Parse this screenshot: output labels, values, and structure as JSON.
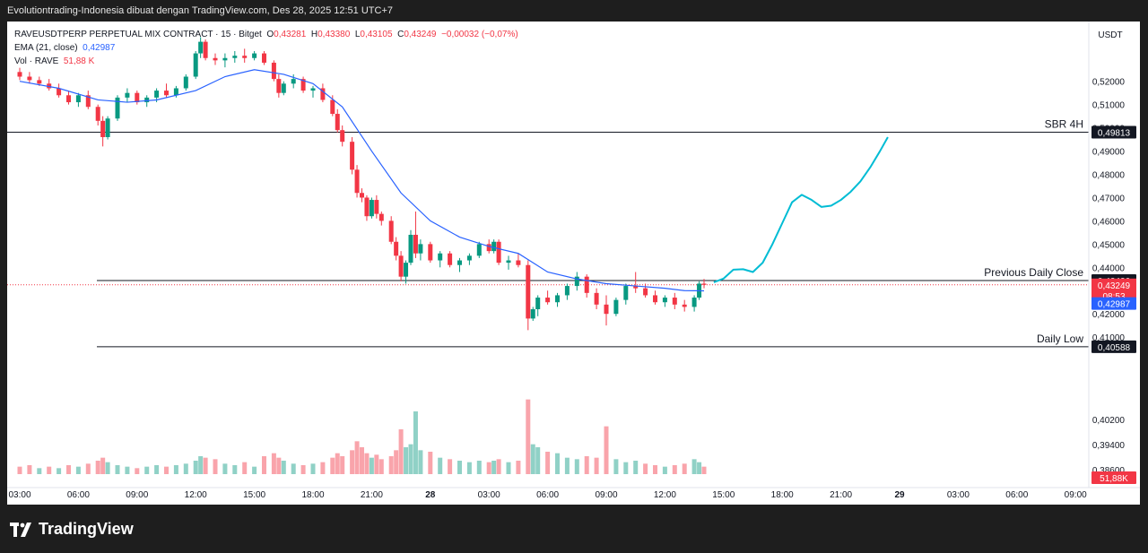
{
  "header": {
    "caption": "Evolutiontrading-Indonesia dibuat dengan TradingView.com, Des 28, 2025 12:51 UTC+7"
  },
  "legend": {
    "symbol": "RAVEUSDTPERP PERPETUAL MIX CONTRACT · 15 · Bitget",
    "o_label": "O",
    "o_value": "0,43281",
    "h_label": "H",
    "h_value": "0,43380",
    "l_label": "L",
    "l_value": "0,43105",
    "c_label": "C",
    "c_value": "0,43249",
    "change": "−0,00032 (−0,07%)",
    "ema_label": "EMA (21, close)",
    "ema_value": "0,42987",
    "vol_label": "Vol · RAVE",
    "vol_value": "51,88 K"
  },
  "footer": {
    "brand": "TradingView"
  },
  "chart_data": {
    "type": "candlestick",
    "currency": "USDT",
    "interval_minutes": 15,
    "ylim": [
      0.38,
      0.538
    ],
    "y_ticks": [
      "0,52000",
      "0,51000",
      "0,50000",
      "0,49000",
      "0,48000",
      "0,47000",
      "0,46000",
      "0,45000",
      "0,44000",
      "0,42000",
      "0,41000",
      "0,40200",
      "0,39400",
      "0,38600"
    ],
    "y_tick_values": [
      0.52,
      0.51,
      0.5,
      0.49,
      0.48,
      0.47,
      0.46,
      0.45,
      0.44,
      0.42,
      0.41,
      0.402,
      0.394,
      0.386
    ],
    "x_ticks": [
      "03:00",
      "06:00",
      "09:00",
      "12:00",
      "15:00",
      "18:00",
      "21:00",
      "28",
      "03:00",
      "06:00",
      "09:00",
      "12:00",
      "15:00",
      "18:00",
      "21:00",
      "29",
      "03:00",
      "06:00",
      "09:00"
    ],
    "x_tick_hours": [
      3,
      6,
      9,
      12,
      15,
      18,
      21,
      24,
      27,
      30,
      33,
      36,
      39,
      42,
      45,
      48,
      51,
      54,
      57
    ],
    "horizontal_levels": [
      {
        "label": "SBR 4H",
        "value": 0.49813,
        "value_label": "0,49813"
      },
      {
        "label": "Previous Daily Close",
        "value": 0.43436,
        "value_label": "0,43436"
      },
      {
        "label": "Daily Low",
        "value": 0.40588,
        "value_label": "0,40588"
      }
    ],
    "last_price": {
      "value": 0.43249,
      "value_label": "0,43249",
      "countdown": "08:53",
      "color": "#f23645"
    },
    "ema": {
      "label": "EMA (21, close)",
      "value": 0.42987,
      "value_label": "0,42987",
      "color": "#2962ff"
    },
    "volume_label": "51,88K",
    "colors": {
      "up": "#089981",
      "down": "#f23645",
      "ema": "#2962ff",
      "projection": "#00bcd4"
    },
    "ohlc_start_hour": 3.0,
    "ohlc": [
      [
        3.0,
        0.524,
        0.5258,
        0.5205,
        0.522
      ],
      [
        3.5,
        0.522,
        0.524,
        0.519,
        0.5205
      ],
      [
        4.0,
        0.5205,
        0.522,
        0.518,
        0.519
      ],
      [
        4.5,
        0.519,
        0.521,
        0.516,
        0.517
      ],
      [
        5.0,
        0.517,
        0.519,
        0.513,
        0.514
      ],
      [
        5.5,
        0.514,
        0.516,
        0.51,
        0.511
      ],
      [
        6.0,
        0.511,
        0.515,
        0.509,
        0.514
      ],
      [
        6.5,
        0.514,
        0.516,
        0.508,
        0.509
      ],
      [
        7.0,
        0.509,
        0.51,
        0.501,
        0.503
      ],
      [
        7.25,
        0.503,
        0.505,
        0.492,
        0.496
      ],
      [
        7.5,
        0.496,
        0.505,
        0.495,
        0.504
      ],
      [
        8.0,
        0.504,
        0.514,
        0.503,
        0.513
      ],
      [
        8.5,
        0.513,
        0.517,
        0.511,
        0.515
      ],
      [
        9.0,
        0.515,
        0.516,
        0.51,
        0.511
      ],
      [
        9.5,
        0.511,
        0.514,
        0.509,
        0.513
      ],
      [
        10.0,
        0.513,
        0.517,
        0.511,
        0.516
      ],
      [
        10.5,
        0.516,
        0.519,
        0.513,
        0.514
      ],
      [
        11.0,
        0.514,
        0.518,
        0.513,
        0.517
      ],
      [
        11.5,
        0.517,
        0.523,
        0.516,
        0.522
      ],
      [
        12.0,
        0.522,
        0.533,
        0.521,
        0.532
      ],
      [
        12.25,
        0.532,
        0.539,
        0.53,
        0.537
      ],
      [
        12.5,
        0.537,
        0.538,
        0.529,
        0.53
      ],
      [
        13.0,
        0.53,
        0.532,
        0.527,
        0.529
      ],
      [
        13.5,
        0.529,
        0.532,
        0.526,
        0.53
      ],
      [
        14.0,
        0.53,
        0.533,
        0.528,
        0.531
      ],
      [
        14.5,
        0.531,
        0.534,
        0.528,
        0.53
      ],
      [
        15.0,
        0.53,
        0.533,
        0.529,
        0.532
      ],
      [
        15.5,
        0.532,
        0.533,
        0.527,
        0.528
      ],
      [
        16.0,
        0.528,
        0.529,
        0.52,
        0.521
      ],
      [
        16.25,
        0.521,
        0.523,
        0.513,
        0.515
      ],
      [
        16.5,
        0.515,
        0.52,
        0.514,
        0.519
      ],
      [
        17.0,
        0.519,
        0.523,
        0.517,
        0.521
      ],
      [
        17.5,
        0.521,
        0.522,
        0.515,
        0.516
      ],
      [
        18.0,
        0.516,
        0.518,
        0.513,
        0.517
      ],
      [
        18.5,
        0.517,
        0.519,
        0.511,
        0.512
      ],
      [
        19.0,
        0.512,
        0.514,
        0.505,
        0.506
      ],
      [
        19.25,
        0.506,
        0.508,
        0.498,
        0.499
      ],
      [
        19.5,
        0.499,
        0.501,
        0.492,
        0.494
      ],
      [
        20.0,
        0.494,
        0.496,
        0.48,
        0.482
      ],
      [
        20.25,
        0.482,
        0.484,
        0.47,
        0.472
      ],
      [
        20.5,
        0.472,
        0.474,
        0.468,
        0.47
      ],
      [
        20.75,
        0.47,
        0.471,
        0.46,
        0.462
      ],
      [
        21.0,
        0.462,
        0.47,
        0.461,
        0.469
      ],
      [
        21.25,
        0.469,
        0.471,
        0.461,
        0.463
      ],
      [
        21.5,
        0.463,
        0.464,
        0.458,
        0.46
      ],
      [
        22.0,
        0.46,
        0.462,
        0.45,
        0.451
      ],
      [
        22.25,
        0.451,
        0.453,
        0.443,
        0.445
      ],
      [
        22.5,
        0.445,
        0.447,
        0.434,
        0.436
      ],
      [
        22.75,
        0.436,
        0.443,
        0.433,
        0.442
      ],
      [
        23.0,
        0.442,
        0.456,
        0.441,
        0.454
      ],
      [
        23.25,
        0.454,
        0.464,
        0.444,
        0.446
      ],
      [
        23.5,
        0.446,
        0.452,
        0.443,
        0.45
      ],
      [
        24.0,
        0.45,
        0.451,
        0.442,
        0.443
      ],
      [
        24.5,
        0.443,
        0.447,
        0.44,
        0.446
      ],
      [
        25.0,
        0.446,
        0.447,
        0.44,
        0.441
      ],
      [
        25.5,
        0.441,
        0.444,
        0.438,
        0.443
      ],
      [
        26.0,
        0.443,
        0.446,
        0.441,
        0.445
      ],
      [
        26.5,
        0.445,
        0.451,
        0.444,
        0.45
      ],
      [
        27.0,
        0.45,
        0.452,
        0.446,
        0.447
      ],
      [
        27.25,
        0.447,
        0.452,
        0.446,
        0.451
      ],
      [
        27.5,
        0.451,
        0.452,
        0.441,
        0.442
      ],
      [
        28.0,
        0.442,
        0.445,
        0.439,
        0.443
      ],
      [
        28.5,
        0.443,
        0.446,
        0.44,
        0.441
      ],
      [
        29.0,
        0.441,
        0.443,
        0.413,
        0.418
      ],
      [
        29.25,
        0.418,
        0.423,
        0.417,
        0.422
      ],
      [
        29.5,
        0.422,
        0.428,
        0.419,
        0.427
      ],
      [
        30.0,
        0.427,
        0.43,
        0.424,
        0.425
      ],
      [
        30.5,
        0.425,
        0.429,
        0.423,
        0.428
      ],
      [
        31.0,
        0.428,
        0.433,
        0.426,
        0.432
      ],
      [
        31.5,
        0.432,
        0.438,
        0.43,
        0.436
      ],
      [
        32.0,
        0.436,
        0.437,
        0.427,
        0.429
      ],
      [
        32.5,
        0.429,
        0.431,
        0.422,
        0.424
      ],
      [
        33.0,
        0.424,
        0.428,
        0.415,
        0.42
      ],
      [
        33.5,
        0.42,
        0.427,
        0.419,
        0.426
      ],
      [
        34.0,
        0.426,
        0.433,
        0.424,
        0.432
      ],
      [
        34.5,
        0.432,
        0.438,
        0.429,
        0.431
      ],
      [
        35.0,
        0.431,
        0.433,
        0.427,
        0.428
      ],
      [
        35.5,
        0.428,
        0.43,
        0.424,
        0.425
      ],
      [
        36.0,
        0.425,
        0.428,
        0.423,
        0.427
      ],
      [
        36.5,
        0.427,
        0.429,
        0.422,
        0.424
      ],
      [
        37.0,
        0.424,
        0.426,
        0.421,
        0.423
      ],
      [
        37.5,
        0.423,
        0.428,
        0.421,
        0.427
      ],
      [
        37.75,
        0.427,
        0.434,
        0.426,
        0.433
      ],
      [
        38.0,
        0.433,
        0.435,
        0.431,
        0.4325
      ]
    ],
    "ema_series": [
      [
        3.0,
        0.52
      ],
      [
        5.0,
        0.517
      ],
      [
        7.0,
        0.512
      ],
      [
        8.5,
        0.511
      ],
      [
        10.0,
        0.512
      ],
      [
        12.0,
        0.516
      ],
      [
        13.5,
        0.522
      ],
      [
        15.0,
        0.525
      ],
      [
        16.5,
        0.523
      ],
      [
        18.0,
        0.519
      ],
      [
        19.5,
        0.509
      ],
      [
        21.0,
        0.49
      ],
      [
        22.5,
        0.472
      ],
      [
        24.0,
        0.46
      ],
      [
        25.5,
        0.453
      ],
      [
        27.0,
        0.449
      ],
      [
        28.5,
        0.446
      ],
      [
        30.0,
        0.438
      ],
      [
        31.5,
        0.435
      ],
      [
        33.0,
        0.433
      ],
      [
        34.5,
        0.432
      ],
      [
        36.0,
        0.431
      ],
      [
        37.0,
        0.43
      ],
      [
        38.0,
        0.4299
      ]
    ],
    "volume": [
      [
        3.0,
        5,
        0
      ],
      [
        3.5,
        6,
        0
      ],
      [
        4.0,
        4,
        1
      ],
      [
        4.5,
        5,
        0
      ],
      [
        5.0,
        4,
        1
      ],
      [
        5.5,
        6,
        0
      ],
      [
        6.0,
        5,
        1
      ],
      [
        6.5,
        7,
        0
      ],
      [
        7.0,
        9,
        0
      ],
      [
        7.25,
        11,
        0
      ],
      [
        7.5,
        8,
        1
      ],
      [
        8.0,
        6,
        1
      ],
      [
        8.5,
        5,
        1
      ],
      [
        9.0,
        4,
        0
      ],
      [
        9.5,
        5,
        1
      ],
      [
        10.0,
        6,
        1
      ],
      [
        10.5,
        5,
        0
      ],
      [
        11.0,
        6,
        1
      ],
      [
        11.5,
        7,
        1
      ],
      [
        12.0,
        9,
        1
      ],
      [
        12.25,
        12,
        1
      ],
      [
        12.5,
        11,
        0
      ],
      [
        13.0,
        10,
        0
      ],
      [
        13.5,
        7,
        1
      ],
      [
        14.0,
        6,
        1
      ],
      [
        14.5,
        8,
        0
      ],
      [
        15.0,
        5,
        1
      ],
      [
        15.5,
        12,
        0
      ],
      [
        16.0,
        14,
        0
      ],
      [
        16.25,
        11,
        0
      ],
      [
        16.5,
        9,
        1
      ],
      [
        17.0,
        7,
        1
      ],
      [
        17.5,
        6,
        0
      ],
      [
        18.0,
        7,
        1
      ],
      [
        18.5,
        8,
        0
      ],
      [
        19.0,
        11,
        0
      ],
      [
        19.25,
        14,
        0
      ],
      [
        19.5,
        12,
        0
      ],
      [
        20.0,
        16,
        0
      ],
      [
        20.25,
        22,
        0
      ],
      [
        20.5,
        18,
        0
      ],
      [
        20.75,
        14,
        0
      ],
      [
        21.0,
        11,
        1
      ],
      [
        21.25,
        13,
        0
      ],
      [
        21.5,
        10,
        0
      ],
      [
        22.0,
        12,
        0
      ],
      [
        22.25,
        16,
        0
      ],
      [
        22.5,
        30,
        0
      ],
      [
        22.75,
        18,
        1
      ],
      [
        23.0,
        20,
        1
      ],
      [
        23.25,
        42,
        1
      ],
      [
        23.5,
        16,
        1
      ],
      [
        24.0,
        15,
        0
      ],
      [
        24.5,
        11,
        1
      ],
      [
        25.0,
        10,
        0
      ],
      [
        25.5,
        9,
        1
      ],
      [
        26.0,
        8,
        1
      ],
      [
        26.5,
        9,
        1
      ],
      [
        27.0,
        8,
        0
      ],
      [
        27.25,
        9,
        1
      ],
      [
        27.5,
        10,
        0
      ],
      [
        28.0,
        8,
        1
      ],
      [
        28.5,
        9,
        0
      ],
      [
        29.0,
        50,
        0
      ],
      [
        29.25,
        20,
        1
      ],
      [
        29.5,
        18,
        1
      ],
      [
        30.0,
        15,
        0
      ],
      [
        30.5,
        14,
        1
      ],
      [
        31.0,
        11,
        1
      ],
      [
        31.5,
        10,
        1
      ],
      [
        32.0,
        12,
        0
      ],
      [
        32.5,
        11,
        0
      ],
      [
        33.0,
        32,
        0
      ],
      [
        33.5,
        10,
        1
      ],
      [
        34.0,
        8,
        1
      ],
      [
        34.5,
        9,
        1
      ],
      [
        35.0,
        7,
        0
      ],
      [
        35.5,
        6,
        0
      ],
      [
        36.0,
        5,
        1
      ],
      [
        36.5,
        6,
        0
      ],
      [
        37.0,
        7,
        0
      ],
      [
        37.5,
        10,
        1
      ],
      [
        37.75,
        8,
        1
      ],
      [
        38.0,
        5,
        0
      ]
    ],
    "volume_max": 60,
    "projection": [
      [
        38.5,
        0.4336
      ],
      [
        39.0,
        0.4352
      ],
      [
        39.5,
        0.439
      ],
      [
        40.0,
        0.4392
      ],
      [
        40.5,
        0.438
      ],
      [
        41.0,
        0.442
      ],
      [
        41.5,
        0.45
      ],
      [
        42.0,
        0.459
      ],
      [
        42.5,
        0.468
      ],
      [
        43.0,
        0.4712
      ],
      [
        43.5,
        0.469
      ],
      [
        44.0,
        0.466
      ],
      [
        44.5,
        0.4665
      ],
      [
        45.0,
        0.469
      ],
      [
        45.5,
        0.4725
      ],
      [
        46.0,
        0.477
      ],
      [
        46.5,
        0.483
      ],
      [
        47.0,
        0.49
      ],
      [
        47.4,
        0.496
      ]
    ]
  }
}
